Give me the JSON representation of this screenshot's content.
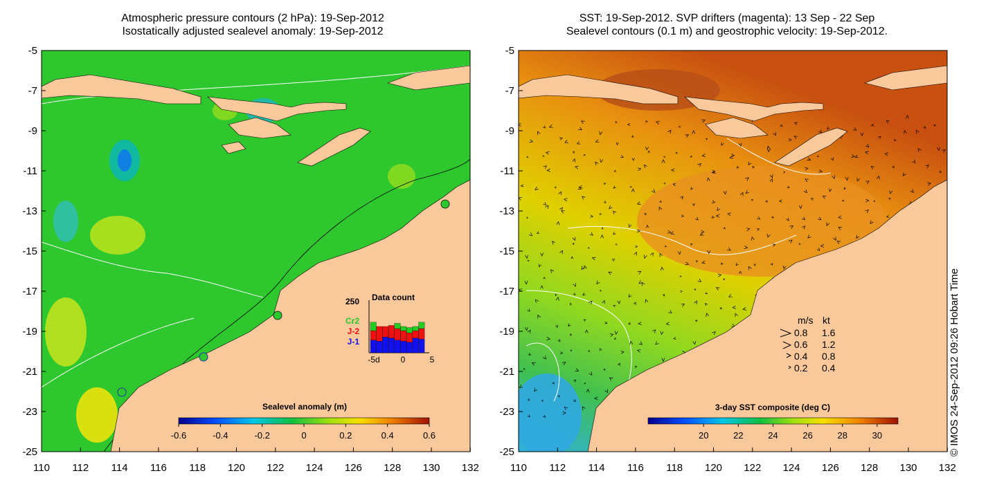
{
  "left_panel": {
    "title_line1": "Atmospheric pressure contours (2 hPa): 19-Sep-2012",
    "title_line2": "Isostatically adjusted sealevel anomaly: 19-Sep-2012",
    "colorbar": {
      "label": "Sealevel anomaly (m)",
      "ticks": [
        "-0.6",
        "-0.4",
        "-0.2",
        "0",
        "0.2",
        "0.4",
        "0.6"
      ]
    },
    "data_count": {
      "title": "Data count",
      "ymax_label": "250",
      "series": [
        {
          "name": "Cr2",
          "color": "#22cc22"
        },
        {
          "name": "J-2",
          "color": "#ee1111"
        },
        {
          "name": "J-1",
          "color": "#1111ee"
        }
      ],
      "xtick_labels": [
        "-5d",
        "0",
        "5"
      ],
      "bars": [
        {
          "day": -5,
          "j1": 60,
          "j2": 45,
          "cr2": 40
        },
        {
          "day": -4,
          "j1": 55,
          "j2": 70,
          "cr2": 0
        },
        {
          "day": -3,
          "j1": 75,
          "j2": 50,
          "cr2": 0
        },
        {
          "day": -2,
          "j1": 70,
          "j2": 60,
          "cr2": 0
        },
        {
          "day": -1,
          "j1": 60,
          "j2": 55,
          "cr2": 25
        },
        {
          "day": 0,
          "j1": 55,
          "j2": 50,
          "cr2": 20
        },
        {
          "day": 1,
          "j1": 50,
          "j2": 45,
          "cr2": 25
        },
        {
          "day": 2,
          "j1": 70,
          "j2": 35,
          "cr2": 20
        },
        {
          "day": 3,
          "j1": 65,
          "j2": 50,
          "cr2": 30
        }
      ]
    }
  },
  "right_panel": {
    "title_line1": "SST: 19-Sep-2012. SVP drifters (magenta): 13 Sep - 22 Sep",
    "title_line2": "Sealevel contours (0.1 m) and geostrophic velocity: 19-Sep-2012.",
    "colorbar": {
      "label": "3-day SST composite (deg C)",
      "ticks": [
        "20",
        "22",
        "24",
        "26",
        "28",
        "30"
      ]
    },
    "velocity_legend": {
      "header_ms": "m/s",
      "header_kt": "kt",
      "rows": [
        {
          "ms": "0.8",
          "kt": "1.6"
        },
        {
          "ms": "0.6",
          "kt": "1.2"
        },
        {
          "ms": "0.4",
          "kt": "0.8"
        },
        {
          "ms": "0.2",
          "kt": "0.4"
        }
      ]
    }
  },
  "axes": {
    "lat_labels": [
      "-5",
      "-7",
      "-9",
      "-11",
      "-13",
      "-15",
      "-17",
      "-19",
      "-21",
      "-23",
      "-25"
    ],
    "lon_labels": [
      "110",
      "112",
      "114",
      "116",
      "118",
      "120",
      "122",
      "124",
      "126",
      "128",
      "130",
      "132"
    ]
  },
  "credit": "© IMOS 24-Sep-2012 09:26 Hobart Time",
  "colors": {
    "land": "#f9c89b",
    "sea_left": "#2ec82e",
    "sea_right": "#f0b020"
  }
}
